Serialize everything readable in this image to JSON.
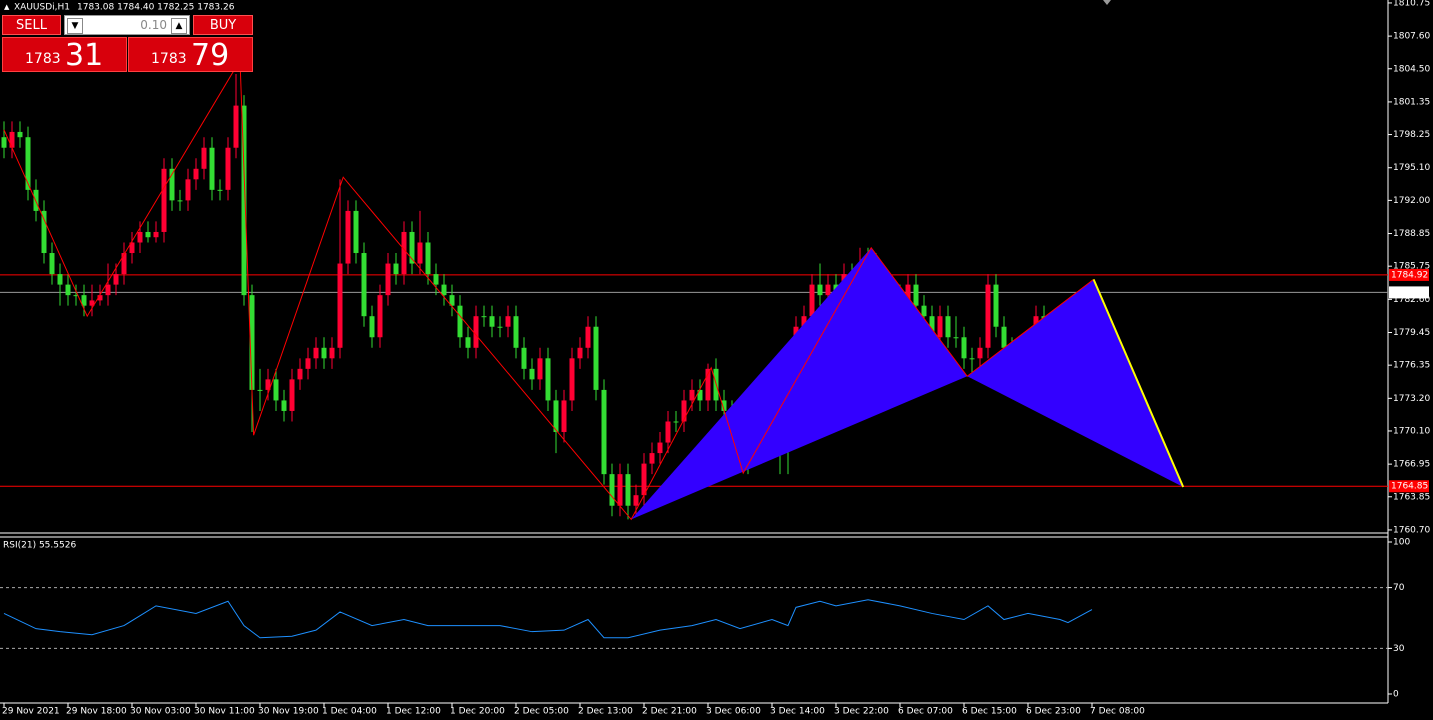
{
  "header": {
    "symbol": "XAUUSDi,H1",
    "ohlc": "1783.08 1784.40 1782.25 1783.26"
  },
  "trade_panel": {
    "sell": "SELL",
    "buy": "BUY",
    "lot": "0.10",
    "sell_main": "1783",
    "sell_pips": "31",
    "buy_main": "1783",
    "buy_pips": "79"
  },
  "chart_data": [
    {
      "type": "candlestick",
      "up_color": "#ff0033",
      "down_color": "#33dd33",
      "ylim": [
        1760.22,
        1811.03
      ],
      "yticks": [
        1810.75,
        {
          "value": 1807.6,
          "label": "1807.60"
        },
        {
          "value": 1804.5,
          "label": "1804.50"
        },
        1801.35,
        1798.25,
        {
          "value": 1795.1,
          "label": "1795.10"
        },
        {
          "value": 1792,
          "label": "1792.00"
        },
        1788.85,
        1785.75,
        {
          "value": 1782.6,
          "label": "1782.60"
        },
        1779.45,
        1776.35,
        {
          "value": 1773.2,
          "label": "1773.20"
        },
        {
          "value": 1770.1,
          "label": "1770.10"
        },
        1766.95,
        1763.85,
        {
          "value": 1760.7,
          "label": "1760.70"
        }
      ],
      "x_labels": [
        "29 Nov 2021",
        "29 Nov 18:00",
        "30 Nov 03:00",
        "30 Nov 11:00",
        "30 Nov 19:00",
        "1 Dec 04:00",
        "1 Dec 12:00",
        "1 Dec 20:00",
        "2 Dec 05:00",
        "2 Dec 13:00",
        "2 Dec 21:00",
        "3 Dec 06:00",
        "3 Dec 14:00",
        "3 Dec 22:00",
        "6 Dec 07:00",
        "6 Dec 15:00",
        "6 Dec 23:00",
        "7 Dec 08:00"
      ],
      "levels": [
        {
          "value": 1784.92,
          "color": "#ff0000",
          "label_bg": "#ff0000",
          "label_color": "#ffffff"
        },
        {
          "value": 1783.26,
          "color": "#9a9a9a",
          "label_bg": "#ffffff",
          "label_color": "#000000"
        },
        {
          "value": 1764.85,
          "color": "#ff0000",
          "label_bg": "#ff0000",
          "label_color": "#ffffff"
        }
      ],
      "candles": [
        [
          1798,
          1799.5,
          1796,
          1797
        ],
        [
          1797,
          1799.5,
          1796,
          1798.5
        ],
        [
          1798.5,
          1799.5,
          1797,
          1798
        ],
        [
          1798,
          1799,
          1792,
          1793
        ],
        [
          1793,
          1794,
          1790,
          1791
        ],
        [
          1791,
          1792,
          1786,
          1787
        ],
        [
          1787,
          1788,
          1784,
          1785
        ],
        [
          1785,
          1786,
          1782,
          1784
        ],
        [
          1784,
          1785,
          1782,
          1783
        ],
        [
          1783,
          1784,
          1782,
          1783
        ],
        [
          1783,
          1784,
          1781,
          1782
        ],
        [
          1782,
          1784,
          1781,
          1782.5
        ],
        [
          1782.5,
          1784,
          1782,
          1783
        ],
        [
          1783,
          1786,
          1782,
          1784
        ],
        [
          1784,
          1786,
          1783,
          1785
        ],
        [
          1785,
          1788,
          1784,
          1787
        ],
        [
          1787,
          1789,
          1786,
          1788
        ],
        [
          1788,
          1790,
          1787,
          1789
        ],
        [
          1789,
          1790,
          1788,
          1788.5
        ],
        [
          1788.5,
          1790,
          1788,
          1789
        ],
        [
          1789,
          1796,
          1788,
          1795
        ],
        [
          1795,
          1796,
          1791,
          1792
        ],
        [
          1792,
          1793,
          1791,
          1792
        ],
        [
          1792,
          1795,
          1791,
          1794
        ],
        [
          1794,
          1796,
          1793,
          1795
        ],
        [
          1795,
          1798,
          1794,
          1797
        ],
        [
          1797,
          1798,
          1792,
          1793
        ],
        [
          1793,
          1794,
          1792,
          1793
        ],
        [
          1793,
          1798,
          1792,
          1797
        ],
        [
          1797,
          1804,
          1796,
          1801
        ],
        [
          1801,
          1802,
          1782,
          1783
        ],
        [
          1783,
          1784,
          1770,
          1774
        ],
        [
          1774,
          1776,
          1772,
          1774
        ],
        [
          1774,
          1776,
          1773,
          1775
        ],
        [
          1775,
          1776,
          1772,
          1773
        ],
        [
          1773,
          1774,
          1771,
          1772
        ],
        [
          1772,
          1776,
          1771,
          1775
        ],
        [
          1775,
          1777,
          1774,
          1776
        ],
        [
          1776,
          1778,
          1775,
          1777
        ],
        [
          1777,
          1779,
          1776,
          1778
        ],
        [
          1778,
          1779,
          1776,
          1777
        ],
        [
          1777,
          1779,
          1776,
          1778
        ],
        [
          1778,
          1794,
          1777,
          1786
        ],
        [
          1786,
          1792,
          1785,
          1791
        ],
        [
          1791,
          1792,
          1786,
          1787
        ],
        [
          1787,
          1788,
          1780,
          1781
        ],
        [
          1781,
          1782,
          1778,
          1779
        ],
        [
          1779,
          1784,
          1778,
          1783
        ],
        [
          1783,
          1787,
          1782,
          1786
        ],
        [
          1786,
          1787,
          1784,
          1785
        ],
        [
          1785,
          1790,
          1784,
          1789
        ],
        [
          1789,
          1790,
          1785,
          1786
        ],
        [
          1786,
          1791,
          1785,
          1788
        ],
        [
          1788,
          1789,
          1784,
          1785
        ],
        [
          1785,
          1786,
          1783,
          1784
        ],
        [
          1784,
          1785,
          1782,
          1783
        ],
        [
          1783,
          1784,
          1781,
          1782
        ],
        [
          1782,
          1783,
          1778,
          1779
        ],
        [
          1779,
          1780,
          1777,
          1778
        ],
        [
          1778,
          1782,
          1777,
          1781
        ],
        [
          1781,
          1782,
          1780,
          1781
        ],
        [
          1781,
          1782,
          1779,
          1780
        ],
        [
          1780,
          1781,
          1779,
          1780
        ],
        [
          1780,
          1782,
          1779,
          1781
        ],
        [
          1781,
          1782,
          1777,
          1778
        ],
        [
          1778,
          1779,
          1775,
          1776
        ],
        [
          1776,
          1777,
          1774,
          1775
        ],
        [
          1775,
          1778,
          1774,
          1777
        ],
        [
          1777,
          1778,
          1772,
          1773
        ],
        [
          1773,
          1774,
          1768,
          1770
        ],
        [
          1770,
          1774,
          1769,
          1773
        ],
        [
          1773,
          1778,
          1772,
          1777
        ],
        [
          1777,
          1779,
          1776,
          1778
        ],
        [
          1778,
          1781,
          1777,
          1780
        ],
        [
          1780,
          1781,
          1773,
          1774
        ],
        [
          1774,
          1775,
          1765,
          1766
        ],
        [
          1766,
          1767,
          1762,
          1763
        ],
        [
          1763,
          1767,
          1762,
          1766
        ],
        [
          1766,
          1767,
          1761.7,
          1763
        ],
        [
          1763,
          1765,
          1762,
          1764
        ],
        [
          1764,
          1768,
          1763,
          1767
        ],
        [
          1767,
          1769,
          1766,
          1768
        ],
        [
          1768,
          1770,
          1767,
          1769
        ],
        [
          1769,
          1772,
          1768,
          1771
        ],
        [
          1771,
          1772,
          1770,
          1771
        ],
        [
          1771,
          1774,
          1770,
          1773
        ],
        [
          1773,
          1775,
          1772,
          1774
        ],
        [
          1774,
          1775,
          1772,
          1773
        ],
        [
          1773,
          1776.5,
          1772,
          1776
        ],
        [
          1776,
          1777,
          1772,
          1773
        ],
        [
          1773,
          1774,
          1771,
          1772
        ],
        [
          1772,
          1773,
          1769,
          1770
        ],
        [
          1770,
          1771,
          1768,
          1769
        ],
        [
          1769,
          1770,
          1766,
          1768
        ],
        [
          1768,
          1771,
          1767,
          1770
        ],
        [
          1770,
          1775,
          1769,
          1773
        ],
        [
          1773,
          1774,
          1771,
          1772
        ],
        [
          1772,
          1773,
          1766,
          1770
        ],
        [
          1770,
          1772,
          1766,
          1770
        ],
        [
          1770,
          1781,
          1769,
          1780
        ],
        [
          1780,
          1782,
          1779,
          1781
        ],
        [
          1781,
          1785,
          1780,
          1784
        ],
        [
          1784,
          1786,
          1782,
          1783
        ],
        [
          1783,
          1785,
          1782,
          1784
        ],
        [
          1784,
          1785,
          1782,
          1783
        ],
        [
          1783,
          1786,
          1782,
          1785
        ],
        [
          1785,
          1786,
          1781,
          1783
        ],
        [
          1783,
          1787.5,
          1782,
          1786
        ],
        [
          1786,
          1787.5,
          1785,
          1786
        ],
        [
          1786,
          1787,
          1783,
          1784
        ],
        [
          1784,
          1785,
          1781,
          1782
        ],
        [
          1782,
          1784,
          1781,
          1783
        ],
        [
          1783,
          1784,
          1781,
          1782
        ],
        [
          1782,
          1785,
          1781,
          1784
        ],
        [
          1784,
          1785,
          1781,
          1782
        ],
        [
          1782,
          1783,
          1780,
          1781
        ],
        [
          1781,
          1782,
          1778,
          1779
        ],
        [
          1779,
          1782,
          1778,
          1781
        ],
        [
          1781,
          1782,
          1778,
          1779
        ],
        [
          1779,
          1781,
          1778,
          1779
        ],
        [
          1779,
          1780,
          1776,
          1777
        ],
        [
          1777,
          1778,
          1775.5,
          1777
        ],
        [
          1777,
          1779,
          1776,
          1778
        ],
        [
          1778,
          1785,
          1777,
          1784
        ],
        [
          1784,
          1785,
          1779,
          1780
        ],
        [
          1780,
          1781,
          1777,
          1778
        ],
        [
          1778,
          1779,
          1777,
          1778
        ],
        [
          1778,
          1779,
          1777,
          1778
        ],
        [
          1778,
          1779,
          1776,
          1777
        ],
        [
          1777,
          1782,
          1776,
          1781
        ],
        [
          1781,
          1782,
          1778,
          1779
        ],
        [
          1779,
          1780,
          1778,
          1779
        ],
        [
          1779,
          1781,
          1778,
          1780
        ],
        [
          1780,
          1781,
          1776,
          1777
        ],
        [
          1777,
          1779,
          1776,
          1778
        ],
        [
          1778,
          1782,
          1777,
          1781
        ],
        [
          1781,
          1784.4,
          1780,
          1783.26
        ]
      ],
      "zigzag": {
        "color": "#ff0000",
        "x": [
          0,
          10.4,
          29.5,
          31.2,
          42.4,
          78.4,
          88.4,
          92.4,
          108.4,
          120.4,
          136.2
        ],
        "values": [
          1798.7,
          1781,
          1805.3,
          1769.7,
          1794.2,
          1761.7,
          1776.1,
          1766.1,
          1787.5,
          1775.3,
          1784.5
        ]
      },
      "pattern": {
        "fill": "#3300ff",
        "leg_color": "#ffff00",
        "x": [
          78.4,
          108.4,
          120.4,
          136.2,
          147.4
        ],
        "values": [
          1761.7,
          1787.5,
          1775.3,
          1784.5,
          1764.78
        ]
      }
    },
    {
      "type": "line",
      "title": "RSI(21) 55.5526",
      "color": "#1e90ff",
      "ylim": [
        0,
        100
      ],
      "yticks": [
        0,
        30,
        70,
        100
      ],
      "levels": [
        70,
        30
      ],
      "x": [
        0,
        4,
        7,
        11,
        15,
        19,
        24,
        28,
        30,
        32,
        36,
        39,
        42,
        46,
        50,
        53,
        58,
        62,
        66,
        70,
        73,
        75,
        78,
        82,
        86,
        89,
        92,
        96,
        98,
        99,
        102,
        104,
        108,
        112,
        116,
        120,
        123,
        125,
        128,
        132,
        133,
        136
      ],
      "values": [
        53,
        43,
        41,
        39,
        45,
        58,
        53,
        61,
        45,
        37,
        38,
        42,
        54,
        45,
        49,
        45,
        45,
        45,
        41,
        42,
        49,
        37,
        37,
        42,
        45,
        49,
        43,
        49,
        45,
        57,
        61,
        58,
        62,
        58,
        53,
        49,
        58,
        49,
        53,
        49,
        47,
        55.5526
      ]
    }
  ]
}
